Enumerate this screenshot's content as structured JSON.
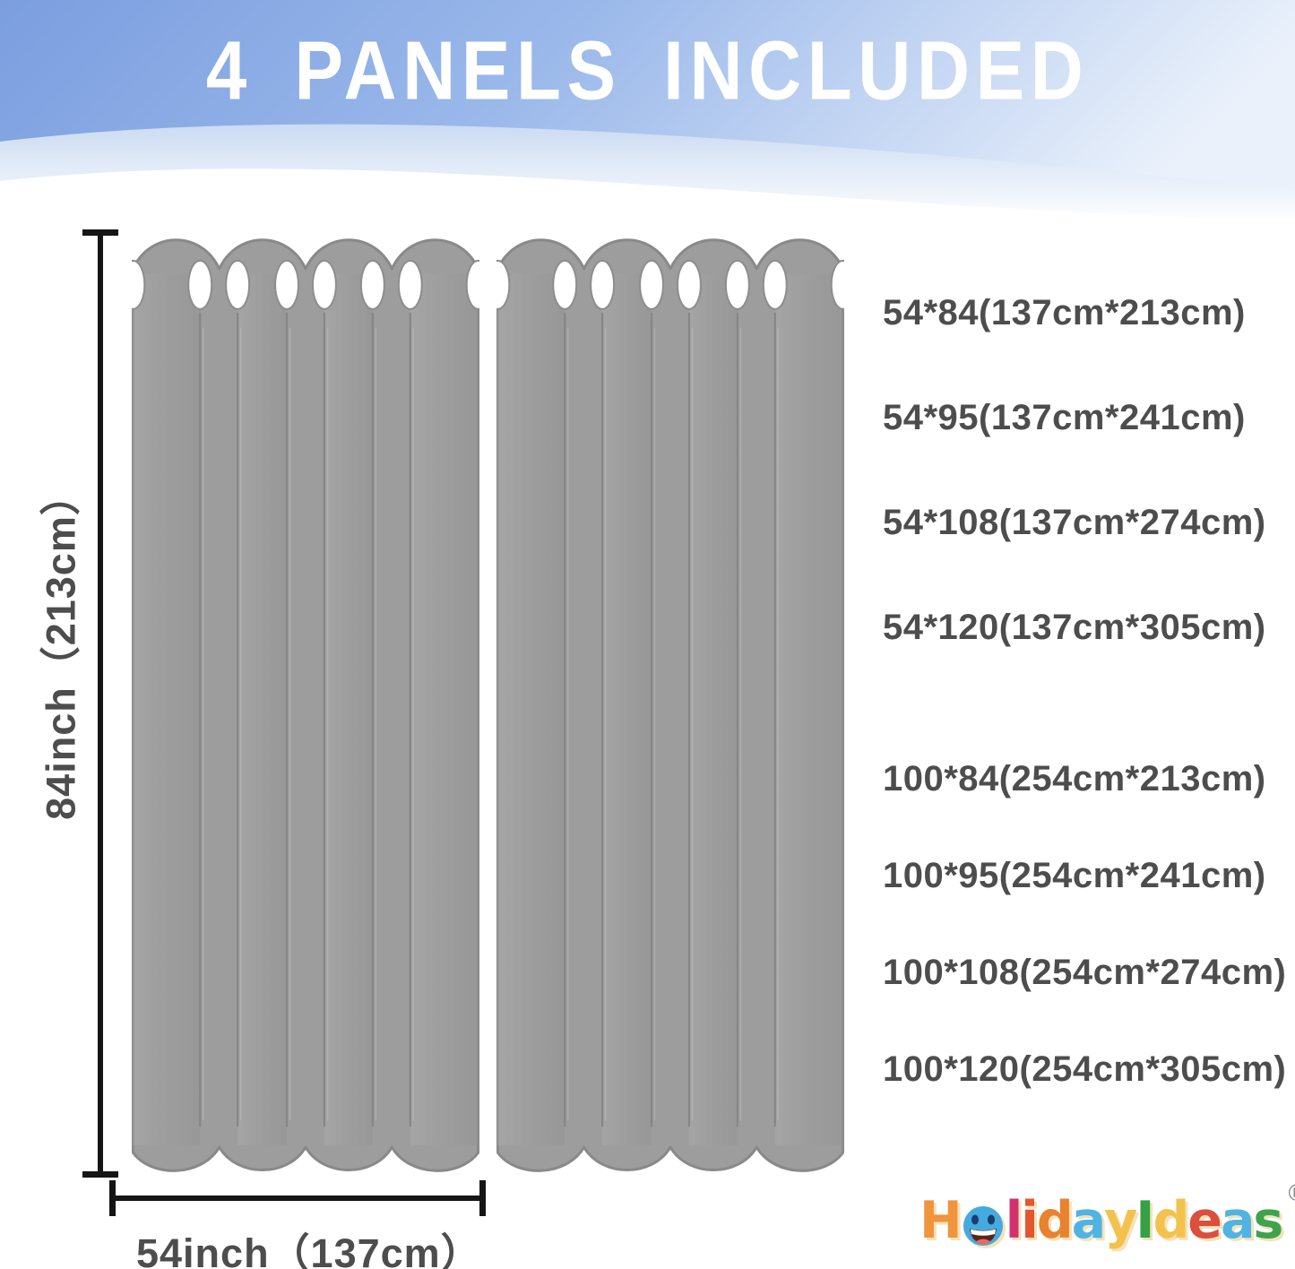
{
  "header": {
    "title": "4 PANELS INCLUDED"
  },
  "diagram": {
    "height_label": "84inch（213cm）",
    "width_label": "54inch（137cm）",
    "panel_count": 2
  },
  "size_list": {
    "groups": [
      {
        "items": [
          "54*84(137cm*213cm)",
          "54*95(137cm*241cm)",
          "54*108(137cm*274cm)",
          "54*120(137cm*305cm)"
        ]
      },
      {
        "items": [
          "100*84(254cm*213cm)",
          "100*95(254cm*241cm)",
          "100*108(254cm*274cm)",
          "100*120(254cm*305cm)"
        ]
      }
    ]
  },
  "logo": {
    "brand": "HolidayIdeas",
    "registered_mark": "®",
    "letters": [
      {
        "char": "H",
        "color": "#F0953C"
      },
      {
        "char": "o",
        "color": "#45AADF",
        "type": "smiley"
      },
      {
        "char": "l",
        "color": "#D3306E"
      },
      {
        "char": "i",
        "color": "#E4572E"
      },
      {
        "char": "d",
        "color": "#E8822F"
      },
      {
        "char": "a",
        "color": "#4FB3E3"
      },
      {
        "char": "y",
        "color": "#F2C24D"
      },
      {
        "char": "I",
        "color": "#35A046"
      },
      {
        "char": "d",
        "color": "#F2C24D"
      },
      {
        "char": "e",
        "color": "#DA4F3E"
      },
      {
        "char": "a",
        "color": "#4FB3E3"
      },
      {
        "char": "s",
        "color": "#3FA34D"
      }
    ]
  },
  "colors": {
    "header_blue_left": "#7B9EDF",
    "header_blue_mid": "#9AB8EA",
    "header_blue_right": "#EAF1FB",
    "header_text": "#FFFFFF",
    "curtain_fill": "#9D9D9D",
    "curtain_outline": "#898989",
    "grommet_fill": "#FFFFFF",
    "dimension_line": "#151515",
    "label_text": "#4D4D4D"
  }
}
